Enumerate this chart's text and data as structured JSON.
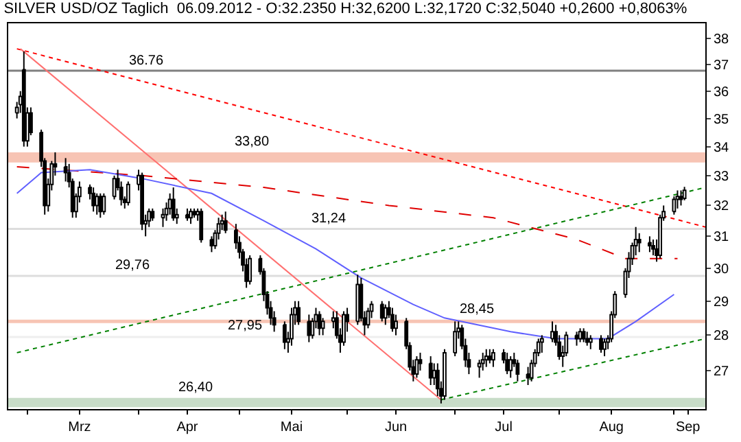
{
  "chart_data": {
    "type": "candlestick",
    "title": "SILVER USD/OZ Taglich  06.09.2012 - O:32.2350 H:32,6200 L:32,1720 C:32,5040 +0,2600 +0,8063%",
    "color": "#000000",
    "colors": [
      "#ffffff",
      "#ffffff",
      "#000000",
      "#ffffff",
      "#000000",
      "#000000",
      "#000000",
      "#ffffff",
      "#ffffff",
      "#000000",
      "#000000",
      "#000000",
      "#000000",
      "#ffffff",
      "#ffffff",
      "#000000",
      "#000000",
      "#ffffff",
      "#000000",
      "#ffffff",
      "#ffffff",
      "#000000",
      "#000000",
      "#000000",
      "#ffffff",
      "#ffffff",
      "#000000",
      "#ffffff",
      "#ffffff",
      "#000000",
      "#ffffff",
      "#ffffff",
      "#ffffff",
      "#000000",
      "#ffffff",
      "#000000",
      "#ffffff",
      "#000000",
      "#ffffff",
      "#000000",
      "#000000",
      "#ffffff",
      "#ffffff",
      "#ffffff",
      "#000000",
      "#000000",
      "#000000",
      "#000000",
      "#000000",
      "#ffffff",
      "#000000",
      "#000000",
      "#000000",
      "#000000",
      "#000000",
      "#000000",
      "#ffffff",
      "#ffffff",
      "#ffffff",
      "#000000",
      "#000000",
      "#ffffff",
      "#ffffff",
      "#000000",
      "#ffffff",
      "#ffffff",
      "#000000",
      "#000000",
      "#ffffff",
      "#000000",
      "#ffffff",
      "#000000",
      "#000000",
      "#ffffff",
      "#ffffff",
      "#000000",
      "#ffffff",
      "#000000",
      "#000000",
      "#ffffff",
      "#000000",
      "#000000",
      "#000000",
      "#ffffff",
      "#000000",
      "#000000",
      "#ffffff",
      "#000000",
      "#000000",
      "#ffffff",
      "#ffffff",
      "#ffffff",
      "#000000",
      "#000000",
      "#000000",
      "#ffffff",
      "#ffffff",
      "#ffffff",
      "#000000",
      "#ffffff",
      "#000000",
      "#000000",
      "#ffffff",
      "#000000",
      "#000000",
      "#000000",
      "#ffffff",
      "#ffffff",
      "#ffffff",
      "#ffffff",
      "#ffffff",
      "#000000",
      "#000000",
      "#ffffff",
      "#ffffff",
      "#000000",
      "#ffffff",
      "#000000",
      "#000000",
      "#ffffff",
      "#000000",
      "#ffffff",
      "#ffffff",
      "#ffffff",
      "#ffffff",
      "#ffffff",
      "#ffffff",
      "#ffffff",
      "#ffffff",
      "#000000",
      "#000000",
      "#000000",
      "#000000",
      "#ffffff",
      "#ffffff",
      "#ffffff",
      "#ffffff",
      "#000000",
      "#ffffff"
    ],
    "x": [
      "2012-02-27",
      "2012-02-28",
      "2012-02-29",
      "2012-03-01",
      "2012-03-02",
      "2012-03-05",
      "2012-03-06",
      "2012-03-07",
      "2012-03-08",
      "2012-03-09",
      "2012-03-12",
      "2012-03-13",
      "2012-03-14",
      "2012-03-15",
      "2012-03-16",
      "2012-03-19",
      "2012-03-20",
      "2012-03-21",
      "2012-03-22",
      "2012-03-23",
      "2012-03-26",
      "2012-03-27",
      "2012-03-28",
      "2012-03-29",
      "2012-03-30",
      "2012-04-02",
      "2012-04-03",
      "2012-04-04",
      "2012-04-05",
      "2012-04-06",
      "2012-04-09",
      "2012-04-10",
      "2012-04-11",
      "2012-04-12",
      "2012-04-13",
      "2012-04-16",
      "2012-04-17",
      "2012-04-18",
      "2012-04-19",
      "2012-04-20",
      "2012-04-23",
      "2012-04-24",
      "2012-04-25",
      "2012-04-26",
      "2012-04-27",
      "2012-04-30",
      "2012-05-01",
      "2012-05-02",
      "2012-05-03",
      "2012-05-04",
      "2012-05-07",
      "2012-05-08",
      "2012-05-09",
      "2012-05-10",
      "2012-05-11",
      "2012-05-14",
      "2012-05-15",
      "2012-05-16",
      "2012-05-17",
      "2012-05-18",
      "2012-05-21",
      "2012-05-22",
      "2012-05-23",
      "2012-05-24",
      "2012-05-25",
      "2012-05-28",
      "2012-05-29",
      "2012-05-30",
      "2012-05-31",
      "2012-06-01",
      "2012-06-04",
      "2012-06-05",
      "2012-06-06",
      "2012-06-07",
      "2012-06-08",
      "2012-06-11",
      "2012-06-12",
      "2012-06-13",
      "2012-06-14",
      "2012-06-15",
      "2012-06-18",
      "2012-06-19",
      "2012-06-20",
      "2012-06-21",
      "2012-06-22",
      "2012-06-25",
      "2012-06-26",
      "2012-06-27",
      "2012-06-28",
      "2012-06-29",
      "2012-07-02",
      "2012-07-03",
      "2012-07-04",
      "2012-07-05",
      "2012-07-06",
      "2012-07-09",
      "2012-07-10",
      "2012-07-11",
      "2012-07-12",
      "2012-07-13",
      "2012-07-16",
      "2012-07-17",
      "2012-07-18",
      "2012-07-19",
      "2012-07-20",
      "2012-07-23",
      "2012-07-24",
      "2012-07-25",
      "2012-07-26",
      "2012-07-27",
      "2012-07-30",
      "2012-07-31",
      "2012-08-01",
      "2012-08-02",
      "2012-08-03",
      "2012-08-06",
      "2012-08-07",
      "2012-08-08",
      "2012-08-09",
      "2012-08-10",
      "2012-08-13",
      "2012-08-14",
      "2012-08-15",
      "2012-08-16",
      "2012-08-17",
      "2012-08-20",
      "2012-08-21",
      "2012-08-22",
      "2012-08-23",
      "2012-08-24",
      "2012-08-27",
      "2012-08-28",
      "2012-08-29",
      "2012-08-30",
      "2012-08-31",
      "2012-09-03",
      "2012-09-04",
      "2012-09-05",
      "2012-09-06"
    ],
    "ohlc": [
      [
        35.2,
        35.6,
        35.0,
        35.4
      ],
      [
        35.5,
        36.0,
        35.2,
        35.8
      ],
      [
        36.8,
        37.5,
        34.0,
        34.2
      ],
      [
        34.2,
        35.4,
        34.0,
        35.2
      ],
      [
        35.2,
        35.4,
        34.4,
        34.5
      ],
      [
        34.5,
        34.6,
        33.3,
        33.5
      ],
      [
        33.5,
        33.6,
        31.7,
        32.0
      ],
      [
        32.0,
        32.9,
        31.8,
        32.7
      ],
      [
        32.7,
        33.5,
        32.5,
        33.4
      ],
      [
        33.4,
        33.8,
        33.0,
        33.3
      ],
      [
        33.3,
        33.6,
        32.8,
        33.1
      ],
      [
        33.1,
        33.4,
        32.6,
        32.8
      ],
      [
        32.8,
        32.9,
        31.6,
        31.8
      ],
      [
        31.8,
        32.4,
        31.6,
        32.3
      ],
      [
        32.3,
        32.8,
        32.1,
        32.6
      ],
      [
        32.6,
        32.7,
        32.2,
        32.4
      ],
      [
        32.4,
        32.6,
        31.8,
        32.0
      ],
      [
        32.0,
        32.4,
        31.7,
        32.3
      ],
      [
        32.3,
        32.4,
        31.6,
        31.8
      ],
      [
        31.8,
        32.4,
        31.7,
        32.3
      ],
      [
        32.3,
        33.0,
        32.2,
        32.9
      ],
      [
        32.9,
        33.2,
        32.5,
        32.6
      ],
      [
        32.6,
        32.8,
        32.0,
        32.2
      ],
      [
        32.2,
        32.3,
        31.9,
        32.1
      ],
      [
        32.1,
        32.8,
        32.0,
        32.7
      ],
      [
        32.7,
        33.2,
        32.5,
        33.0
      ],
      [
        33.0,
        33.1,
        31.2,
        31.4
      ],
      [
        31.4,
        31.7,
        31.0,
        31.5
      ],
      [
        31.5,
        31.9,
        31.3,
        31.8
      ],
      [
        31.8,
        31.9,
        31.5,
        31.6
      ],
      [
        31.6,
        31.9,
        31.3,
        31.7
      ],
      [
        31.7,
        32.1,
        31.5,
        31.9
      ],
      [
        31.9,
        32.4,
        31.7,
        32.2
      ],
      [
        32.2,
        32.6,
        31.5,
        31.6
      ],
      [
        31.6,
        31.9,
        31.4,
        31.7
      ],
      [
        31.7,
        31.9,
        31.5,
        31.6
      ],
      [
        31.6,
        31.9,
        31.4,
        31.8
      ],
      [
        31.8,
        31.9,
        31.6,
        31.7
      ],
      [
        31.7,
        31.9,
        31.5,
        31.8
      ],
      [
        31.8,
        31.9,
        30.8,
        30.9
      ],
      [
        30.9,
        31.0,
        30.5,
        30.7
      ],
      [
        30.7,
        31.2,
        30.6,
        31.1
      ],
      [
        31.1,
        31.6,
        30.9,
        31.4
      ],
      [
        31.4,
        31.7,
        31.2,
        31.5
      ],
      [
        31.5,
        31.8,
        31.1,
        31.2
      ],
      [
        31.2,
        31.4,
        30.6,
        30.8
      ],
      [
        30.8,
        31.0,
        30.3,
        30.5
      ],
      [
        30.5,
        30.6,
        29.9,
        30.1
      ],
      [
        30.1,
        30.3,
        29.4,
        29.6
      ],
      [
        29.6,
        30.4,
        29.5,
        30.3
      ],
      [
        30.3,
        30.4,
        29.8,
        29.9
      ],
      [
        29.9,
        30.0,
        29.0,
        29.2
      ],
      [
        29.2,
        29.3,
        28.6,
        28.8
      ],
      [
        28.8,
        29.0,
        28.3,
        28.5
      ],
      [
        28.5,
        28.7,
        28.1,
        28.3
      ],
      [
        28.3,
        28.4,
        27.6,
        27.8
      ],
      [
        27.8,
        28.1,
        27.5,
        27.9
      ],
      [
        27.9,
        28.8,
        27.7,
        28.6
      ],
      [
        28.6,
        29.0,
        28.3,
        28.8
      ],
      [
        28.8,
        29.0,
        28.3,
        28.4
      ],
      [
        28.4,
        28.6,
        27.8,
        28.0
      ],
      [
        28.0,
        28.5,
        27.9,
        28.4
      ],
      [
        28.4,
        28.8,
        28.2,
        28.6
      ],
      [
        28.6,
        28.7,
        28.0,
        28.2
      ],
      [
        28.2,
        28.5,
        28.0,
        28.4
      ],
      [
        28.4,
        28.7,
        28.2,
        28.5
      ],
      [
        28.5,
        28.7,
        27.9,
        28.0
      ],
      [
        28.0,
        28.2,
        27.5,
        27.8
      ],
      [
        27.8,
        28.7,
        27.7,
        28.6
      ],
      [
        28.6,
        28.8,
        28.1,
        28.4
      ],
      [
        28.4,
        29.8,
        28.3,
        29.5
      ],
      [
        29.5,
        29.7,
        28.4,
        28.5
      ],
      [
        28.5,
        28.7,
        28.0,
        28.3
      ],
      [
        28.3,
        28.8,
        28.2,
        28.7
      ],
      [
        28.7,
        29.0,
        28.5,
        28.9
      ],
      [
        28.9,
        29.0,
        28.4,
        28.5
      ],
      [
        28.5,
        28.9,
        28.3,
        28.8
      ],
      [
        28.8,
        29.0,
        28.5,
        28.6
      ],
      [
        28.6,
        28.8,
        28.1,
        28.2
      ],
      [
        28.2,
        28.6,
        28.0,
        28.4
      ],
      [
        28.4,
        28.5,
        27.6,
        27.7
      ],
      [
        27.7,
        27.8,
        27.0,
        27.1
      ],
      [
        27.1,
        27.3,
        26.7,
        26.9
      ],
      [
        26.9,
        27.4,
        26.8,
        27.3
      ],
      [
        27.3,
        27.5,
        27.0,
        27.2
      ],
      [
        27.2,
        27.4,
        26.6,
        26.8
      ],
      [
        26.8,
        27.2,
        26.6,
        27.0
      ],
      [
        27.0,
        27.2,
        26.3,
        26.5
      ],
      [
        26.5,
        26.7,
        26.1,
        26.3
      ],
      [
        26.3,
        27.6,
        26.2,
        27.5
      ],
      [
        27.5,
        28.4,
        27.4,
        28.1
      ],
      [
        28.1,
        28.4,
        27.9,
        28.2
      ],
      [
        28.2,
        28.3,
        27.6,
        27.7
      ],
      [
        27.7,
        27.9,
        27.1,
        27.3
      ],
      [
        27.3,
        27.5,
        26.9,
        27.1
      ],
      [
        27.1,
        27.3,
        26.8,
        27.2
      ],
      [
        27.2,
        27.5,
        27.0,
        27.3
      ],
      [
        27.3,
        27.6,
        27.1,
        27.4
      ],
      [
        27.4,
        27.6,
        27.2,
        27.3
      ],
      [
        27.3,
        27.6,
        27.1,
        27.5
      ],
      [
        27.5,
        27.6,
        27.2,
        27.3
      ],
      [
        27.3,
        27.5,
        26.9,
        27.0
      ],
      [
        27.0,
        27.4,
        26.8,
        27.3
      ],
      [
        27.3,
        27.5,
        27.1,
        27.2
      ],
      [
        27.2,
        27.3,
        26.7,
        26.9
      ],
      [
        26.9,
        27.1,
        26.6,
        26.8
      ],
      [
        26.8,
        27.3,
        26.7,
        27.2
      ],
      [
        27.2,
        27.6,
        27.1,
        27.5
      ],
      [
        27.5,
        27.9,
        27.4,
        27.8
      ],
      [
        27.8,
        28.0,
        27.5,
        27.9
      ],
      [
        27.9,
        28.4,
        27.8,
        28.1
      ],
      [
        28.1,
        28.3,
        27.7,
        27.8
      ],
      [
        27.8,
        28.0,
        27.3,
        27.4
      ],
      [
        27.4,
        27.7,
        27.1,
        27.5
      ],
      [
        27.5,
        28.1,
        27.4,
        28.0
      ],
      [
        28.0,
        28.1,
        27.7,
        27.9
      ],
      [
        27.9,
        28.2,
        27.8,
        28.1
      ],
      [
        28.1,
        28.2,
        27.8,
        27.9
      ],
      [
        27.9,
        28.1,
        27.7,
        27.8
      ],
      [
        27.8,
        28.0,
        27.6,
        27.9
      ],
      [
        27.9,
        28.0,
        27.5,
        27.6
      ],
      [
        27.6,
        27.9,
        27.4,
        27.8
      ],
      [
        27.8,
        28.0,
        27.6,
        27.9
      ],
      [
        27.9,
        28.7,
        27.8,
        28.6
      ],
      [
        28.6,
        29.3,
        28.5,
        29.2
      ],
      [
        29.2,
        30.0,
        29.1,
        29.9
      ],
      [
        29.9,
        30.5,
        29.7,
        30.3
      ],
      [
        30.3,
        30.8,
        30.1,
        30.7
      ],
      [
        30.7,
        31.3,
        30.4,
        30.9
      ],
      [
        30.9,
        31.1,
        30.5,
        30.8
      ],
      [
        30.8,
        31.0,
        30.5,
        30.7
      ],
      [
        30.7,
        30.9,
        30.4,
        30.6
      ],
      [
        30.6,
        30.9,
        30.2,
        30.4
      ],
      [
        30.4,
        31.7,
        30.3,
        31.6
      ],
      [
        31.6,
        32.0,
        31.5,
        31.8
      ],
      [
        31.8,
        32.3,
        31.7,
        32.2
      ],
      [
        32.2,
        32.5,
        31.9,
        32.3
      ],
      [
        32.3,
        32.5,
        32.0,
        32.2
      ],
      [
        32.235,
        32.62,
        32.172,
        32.504
      ]
    ],
    "series": [
      {
        "type": "line",
        "color": "#ff0000",
        "line_style": "dotted",
        "x": [
          "2012-02-27",
          "2012-09-12"
        ],
        "values": [
          37.6,
          31.3
        ]
      },
      {
        "type": "line",
        "color": "#ff7070",
        "line_style": "solid",
        "x": [
          "2012-02-28",
          "2012-06-28"
        ],
        "values": [
          37.6,
          26.2
        ]
      },
      {
        "type": "line",
        "color": "#e00000",
        "line_style": "dashed",
        "x": [
          "2012-02-27",
          "2012-04-03",
          "2012-05-08",
          "2012-06-13",
          "2012-07-13",
          "2012-08-06",
          "2012-08-20",
          "2012-09-04"
        ],
        "values": [
          33.3,
          33.0,
          32.6,
          32.0,
          31.6,
          30.9,
          30.3,
          30.3
        ]
      },
      {
        "type": "line",
        "color": "#6060ff",
        "line_style": "solid",
        "x": [
          "2012-02-27",
          "2012-03-05",
          "2012-03-19",
          "2012-04-03",
          "2012-04-23",
          "2012-05-08",
          "2012-05-23",
          "2012-06-05",
          "2012-06-20",
          "2012-06-29",
          "2012-07-18",
          "2012-07-31",
          "2012-08-15",
          "2012-08-23",
          "2012-09-03"
        ],
        "values": [
          32.4,
          33.1,
          33.2,
          32.9,
          32.4,
          31.5,
          30.6,
          29.7,
          28.9,
          28.5,
          28.1,
          27.9,
          27.9,
          28.4,
          29.2
        ]
      },
      {
        "type": "line",
        "color": "#008000",
        "line_style": "dotted",
        "x": [
          "2012-02-27",
          "2012-09-12"
        ],
        "values": [
          27.5,
          32.6
        ]
      },
      {
        "type": "line",
        "color": "#008000",
        "line_style": "dotted",
        "x": [
          "2012-06-28",
          "2012-09-12"
        ],
        "values": [
          26.2,
          27.9
        ]
      }
    ],
    "ref_lines": [
      {
        "axis": "y",
        "value": 36.76,
        "label": "36.76",
        "color": "#808080"
      },
      {
        "axis": "y",
        "value": 31.24,
        "label": "31,24",
        "color": "#dddddd"
      },
      {
        "axis": "y",
        "value": 29.76,
        "label": "29,76",
        "color": "#dddddd"
      },
      {
        "axis": "y",
        "value": 27.95,
        "label": "27,95",
        "color": "#eeeeee"
      }
    ],
    "bands": [
      {
        "axis": "y",
        "from": 33.45,
        "to": 33.8,
        "label": "33,80",
        "color": "#f7c4b4"
      },
      {
        "axis": "y",
        "from": 28.35,
        "to": 28.45,
        "label": "28,45",
        "color": "#f7c4b4"
      },
      {
        "axis": "y",
        "from": 26.0,
        "to": 26.25,
        "label": "26,40",
        "color": "#c8dcc8"
      }
    ],
    "xlim": [
      "2012-02-24T12:00",
      "2012-09-12"
    ],
    "xticks": [
      {
        "value": "2012-03-01",
        "label": null
      },
      {
        "value": "2012-03-16",
        "label": "Mrz"
      },
      {
        "value": "2012-04-02",
        "label": null
      },
      {
        "value": "2012-04-16",
        "label": "Apr"
      },
      {
        "value": "2012-05-01",
        "label": null
      },
      {
        "value": "2012-05-16",
        "label": "Mai"
      },
      {
        "value": "2012-06-01",
        "label": null
      },
      {
        "value": "2012-06-15",
        "label": "Jun"
      },
      {
        "value": "2012-07-02",
        "label": null
      },
      {
        "value": "2012-07-16",
        "label": "Jul"
      },
      {
        "value": "2012-08-01",
        "label": null
      },
      {
        "value": "2012-08-16",
        "label": "Aug"
      },
      {
        "value": "2012-09-03",
        "label": null
      },
      {
        "value": "2012-09-07",
        "label": "Sep"
      }
    ],
    "ylim": [
      25.95,
      38.6
    ],
    "yticks": [
      27,
      28,
      29,
      30,
      31,
      32,
      33,
      34,
      35,
      36,
      37,
      38
    ],
    "log": "y"
  }
}
